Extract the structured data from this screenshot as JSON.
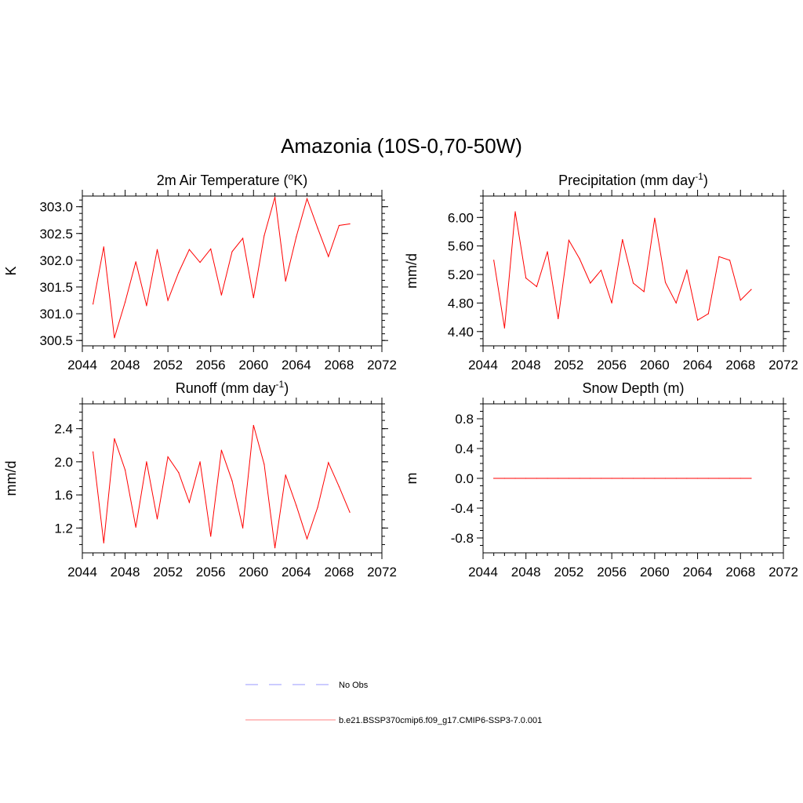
{
  "title": "Amazonia (10S-0,70-50W)",
  "x_ticks": [
    "2044",
    "2048",
    "2052",
    "2056",
    "2060",
    "2064",
    "2068",
    "2072"
  ],
  "legend": [
    {
      "label": "No Obs",
      "color": "#9999ff",
      "dashed": true
    },
    {
      "label": "b.e21.BSSP370cmip6.f09_g17.CMIP6-SSP3-7.0.001",
      "color": "#ff8080",
      "dashed": false
    }
  ],
  "chart_data": [
    {
      "type": "line",
      "title": "2m Air Temperature (oK)",
      "title_main": "2m Air Temperature (",
      "title_sup": "o",
      "title_after": "K)",
      "xlabel": "",
      "ylabel": "K",
      "xlim": [
        2044,
        2072
      ],
      "ylim": [
        300.4,
        303.2
      ],
      "yticks": [
        "300.5",
        "301.0",
        "301.5",
        "302.0",
        "302.5",
        "303.0"
      ],
      "ytick_values": [
        300.5,
        301.0,
        301.5,
        302.0,
        302.5,
        303.0
      ],
      "color": "#ff0000",
      "x": [
        2045,
        2046,
        2047,
        2048,
        2049,
        2050,
        2051,
        2052,
        2053,
        2054,
        2055,
        2056,
        2057,
        2058,
        2059,
        2060,
        2061,
        2062,
        2063,
        2064,
        2065,
        2066,
        2067,
        2068,
        2069
      ],
      "y": [
        301.18,
        302.25,
        300.55,
        301.22,
        301.97,
        301.15,
        302.2,
        301.25,
        301.77,
        302.2,
        301.96,
        302.21,
        301.35,
        302.16,
        302.41,
        301.3,
        302.46,
        303.18,
        301.61,
        302.44,
        303.15,
        302.6,
        302.07,
        302.65,
        302.68
      ]
    },
    {
      "type": "line",
      "title": "Precipitation (mm day-1)",
      "title_main": "Precipitation (mm day",
      "title_sup": "-1",
      "title_after": ")",
      "xlabel": "",
      "ylabel": "mm/d",
      "xlim": [
        2044,
        2072
      ],
      "ylim": [
        4.2,
        6.3
      ],
      "yticks": [
        "4.40",
        "4.80",
        "5.20",
        "5.60",
        "6.00"
      ],
      "ytick_values": [
        4.4,
        4.8,
        5.2,
        5.6,
        6.0
      ],
      "color": "#ff0000",
      "x": [
        2045,
        2046,
        2047,
        2048,
        2049,
        2050,
        2051,
        2052,
        2053,
        2054,
        2055,
        2056,
        2057,
        2058,
        2059,
        2060,
        2061,
        2062,
        2063,
        2064,
        2065,
        2066,
        2067,
        2068,
        2069
      ],
      "y": [
        5.4,
        4.45,
        6.08,
        5.15,
        5.03,
        5.52,
        4.58,
        5.68,
        5.42,
        5.08,
        5.26,
        4.8,
        5.69,
        5.08,
        4.96,
        5.99,
        5.09,
        4.8,
        5.26,
        4.56,
        4.65,
        5.45,
        5.4,
        4.84,
        4.99
      ]
    },
    {
      "type": "line",
      "title": "Runoff (mm day-1)",
      "title_main": "Runoff (mm day",
      "title_sup": "-1",
      "title_after": ")",
      "xlabel": "",
      "ylabel": "mm/d",
      "xlim": [
        2044,
        2072
      ],
      "ylim": [
        0.9,
        2.7
      ],
      "yticks": [
        "1.2",
        "1.6",
        "2.0",
        "2.4"
      ],
      "ytick_values": [
        1.2,
        1.6,
        2.0,
        2.4
      ],
      "color": "#ff0000",
      "x": [
        2045,
        2046,
        2047,
        2048,
        2049,
        2050,
        2051,
        2052,
        2053,
        2054,
        2055,
        2056,
        2057,
        2058,
        2059,
        2060,
        2061,
        2062,
        2063,
        2064,
        2065,
        2066,
        2067,
        2068,
        2069
      ],
      "y": [
        2.12,
        1.02,
        2.28,
        1.9,
        1.21,
        2.0,
        1.31,
        2.06,
        1.87,
        1.51,
        2.0,
        1.1,
        2.14,
        1.77,
        1.2,
        2.44,
        1.97,
        0.96,
        1.84,
        1.47,
        1.07,
        1.45,
        1.99,
        1.7,
        1.39
      ]
    },
    {
      "type": "line",
      "title": "Snow Depth (m)",
      "title_main": "Snow Depth (m)",
      "title_sup": "",
      "title_after": "",
      "xlabel": "",
      "ylabel": "m",
      "xlim": [
        2044,
        2072
      ],
      "ylim": [
        -1.0,
        1.0
      ],
      "yticks": [
        "-0.8",
        "-0.4",
        "0.0",
        "0.4",
        "0.8"
      ],
      "ytick_values": [
        -0.8,
        -0.4,
        0.0,
        0.4,
        0.8
      ],
      "color": "#ff0000",
      "x": [
        2045,
        2046,
        2047,
        2048,
        2049,
        2050,
        2051,
        2052,
        2053,
        2054,
        2055,
        2056,
        2057,
        2058,
        2059,
        2060,
        2061,
        2062,
        2063,
        2064,
        2065,
        2066,
        2067,
        2068,
        2069
      ],
      "y": [
        0,
        0,
        0,
        0,
        0,
        0,
        0,
        0,
        0,
        0,
        0,
        0,
        0,
        0,
        0,
        0,
        0,
        0,
        0,
        0,
        0,
        0,
        0,
        0,
        0
      ]
    }
  ]
}
